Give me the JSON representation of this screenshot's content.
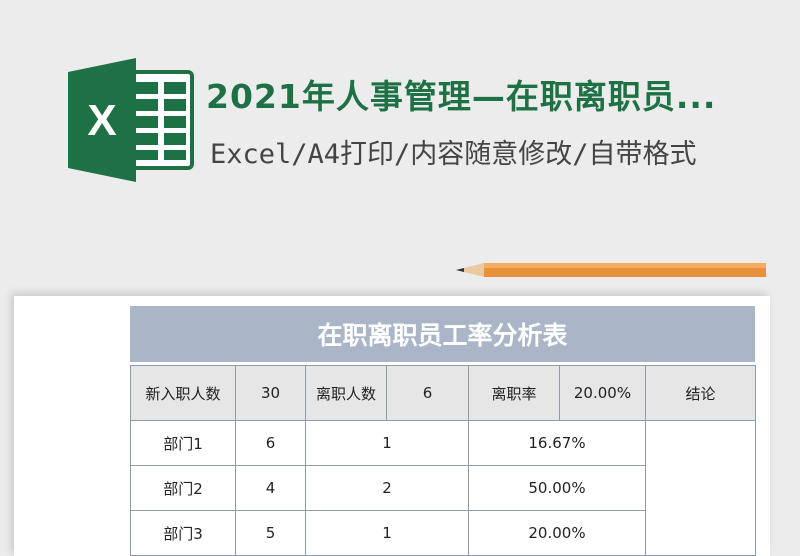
{
  "header": {
    "title": "2021年人事管理—在职离职员...",
    "subtitle": "Excel/A4打印/内容随意修改/自带格式",
    "logo_letter": "X",
    "brand_color": "#1e7145"
  },
  "sheet": {
    "title": "在职离职员工率分析表",
    "summary": {
      "new_label": "新入职人数",
      "new_value": "30",
      "leave_label": "离职人数",
      "leave_value": "6",
      "rate_label": "离职率",
      "rate_value": "20.00%",
      "conclusion_label": "结论"
    },
    "rows": [
      {
        "dept": "部门1",
        "new": "6",
        "leave": "1",
        "rate": "16.67%"
      },
      {
        "dept": "部门2",
        "new": "4",
        "leave": "2",
        "rate": "50.00%"
      },
      {
        "dept": "部门3",
        "new": "5",
        "leave": "1",
        "rate": "20.00%"
      }
    ]
  }
}
